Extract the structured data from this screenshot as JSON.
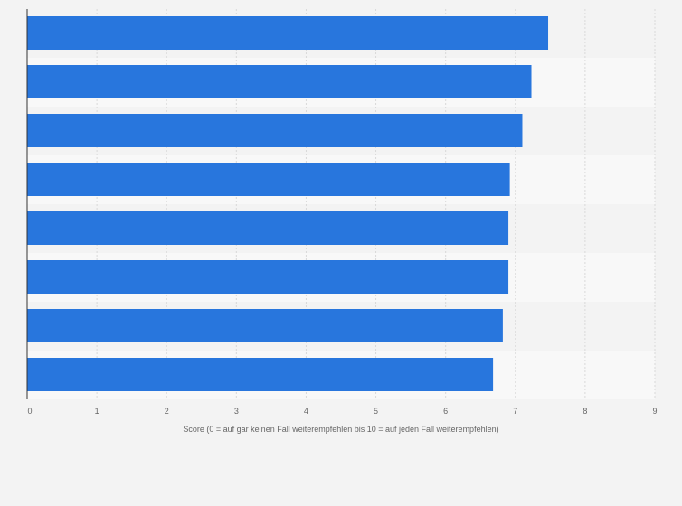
{
  "chart_data": {
    "type": "bar",
    "orientation": "horizontal",
    "categories": [
      "",
      "",
      "",
      "",
      "",
      "",
      "",
      ""
    ],
    "values": [
      7.47,
      7.23,
      7.1,
      6.92,
      6.9,
      6.9,
      6.82,
      6.68
    ],
    "xlabel": "Score (0 = auf gar keinen Fall weiterempfehlen bis 10 = auf jeden Fall weiterempfehlen)",
    "ylabel": "",
    "xlim": [
      0,
      9
    ],
    "xticks": [
      "0",
      "1",
      "2",
      "3",
      "4",
      "5",
      "6",
      "7",
      "8",
      "9"
    ],
    "grid": true,
    "legend": "none",
    "colors": {
      "bar": "#2876dd",
      "background": "#f3f3f3",
      "band_light": "#f8f8f8",
      "grid": "#d9d9d9",
      "axis": "#333333",
      "text": "#666666"
    }
  }
}
